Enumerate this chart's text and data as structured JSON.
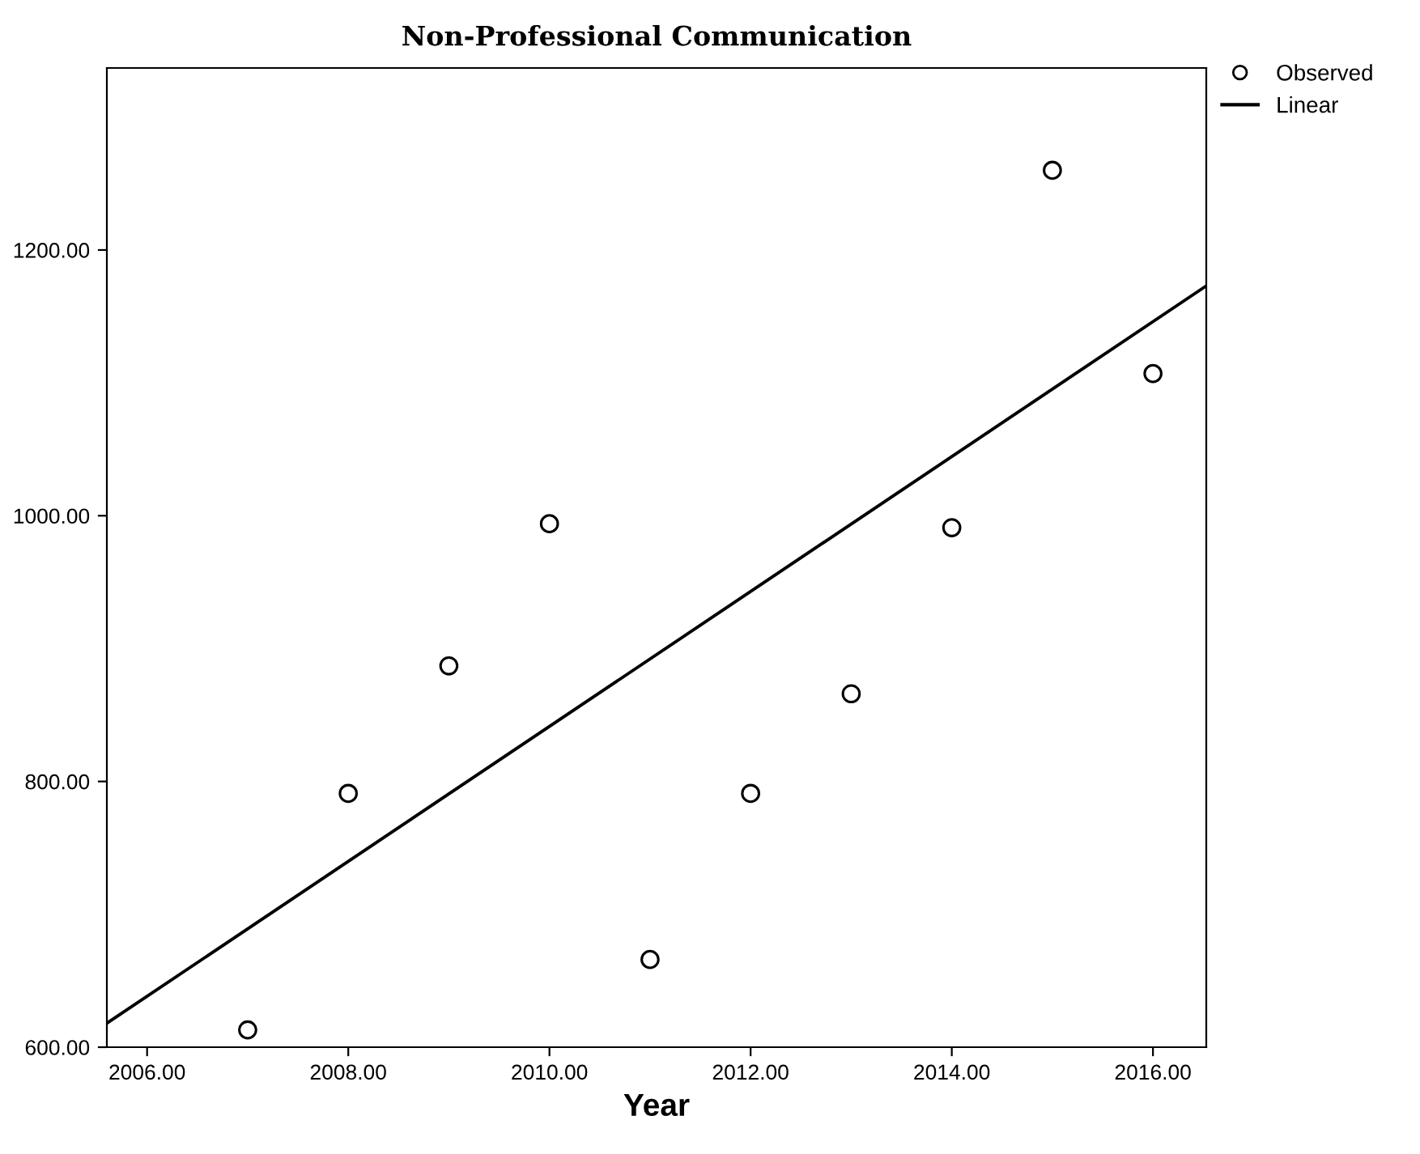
{
  "chart_data": {
    "type": "scatter",
    "title": "Non-Professional Communication",
    "xlabel": "Year",
    "series": [
      {
        "name": "Observed",
        "type": "scatter",
        "color": "#000000",
        "marker": "circle",
        "x": [
          2007,
          2008,
          2009,
          2010,
          2011,
          2012,
          2013,
          2014,
          2015,
          2016
        ],
        "values": [
          613,
          791,
          887,
          994,
          666,
          791,
          866,
          991,
          1260,
          1107
        ]
      },
      {
        "name": "Linear",
        "type": "line",
        "color": "#000000",
        "line_style": "solid",
        "x": [
          2005.6,
          2016.53
        ],
        "values": [
          618,
          1173
        ]
      }
    ],
    "xlim": [
      2005.6,
      2016.53
    ],
    "ylim": [
      600,
      1337
    ],
    "xticks": [
      {
        "value": 2006,
        "label": "2006.00"
      },
      {
        "value": 2008,
        "label": "2008.00"
      },
      {
        "value": 2010,
        "label": "2010.00"
      },
      {
        "value": 2012,
        "label": "2012.00"
      },
      {
        "value": 2014,
        "label": "2014.00"
      },
      {
        "value": 2016,
        "label": "2016.00"
      }
    ],
    "yticks": [
      {
        "value": 600,
        "label": "600.00"
      },
      {
        "value": 800,
        "label": "800.00"
      },
      {
        "value": 1000,
        "label": "1000.00"
      },
      {
        "value": 1200,
        "label": "1200.00"
      }
    ],
    "grid": false,
    "legend": "top right"
  }
}
